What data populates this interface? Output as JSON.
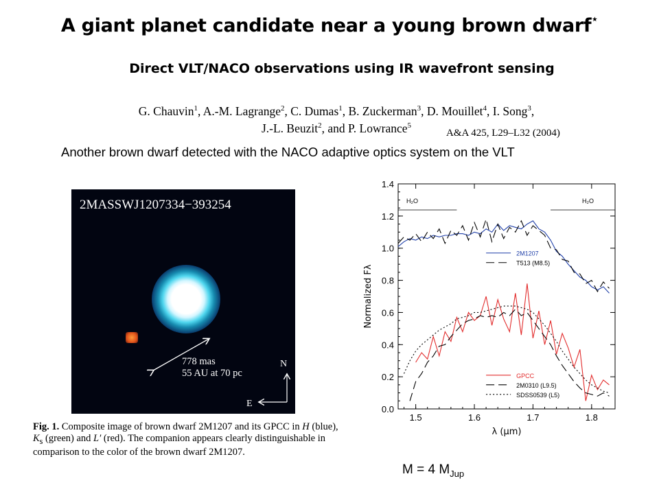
{
  "slide": {
    "title": "A giant planet candidate near a young brown dwarf",
    "title_mark": "⋆",
    "subtitle": "Direct VLT/NACO observations using IR wavefront sensing",
    "authors_line1": [
      {
        "name": "G. Chauvin",
        "sup": "1"
      },
      {
        "name": ", A.-M. Lagrange",
        "sup": "2"
      },
      {
        "name": ", C. Dumas",
        "sup": "1"
      },
      {
        "name": ", B. Zuckerman",
        "sup": "3"
      },
      {
        "name": ", D. Mouillet",
        "sup": "4"
      },
      {
        "name": ", I. Song",
        "sup": "3"
      },
      {
        "name": ",",
        "sup": ""
      }
    ],
    "authors_line2": [
      {
        "name": "J.-L. Beuzit",
        "sup": "2"
      },
      {
        "name": ", and P. Lowrance",
        "sup": "5"
      }
    ],
    "citation": "A&A 425, L29–L32 (2004)",
    "caption": "Another brown dwarf detected with the NACO adaptive optics system on the VLT",
    "mass_prefix": "M = 4 M",
    "mass_sub": "Jup"
  },
  "image_panel": {
    "object_label": "2MASSWJ1207334−393254",
    "scale_line1": "778 mas",
    "scale_line2": "55 AU at 70 pc",
    "north": "N",
    "east": "E"
  },
  "figure_caption": {
    "label": "Fig. 1.",
    "t1": " Composite image of brown dwarf 2M1207 and its GPCC in ",
    "H": "H",
    "t2": " (blue), ",
    "K": "K",
    "Ksub": "s",
    "t3": " (green) and ",
    "L": "L′",
    "t4": " (red). The companion appears clearly distinguishable in comparison to the color of the brown dwarf 2M1207."
  },
  "colors": {
    "blue_series": "#1f3fa8",
    "red_series": "#e22b2b",
    "black_series": "#000000"
  },
  "chart_data": {
    "type": "line",
    "xlabel": "λ (μm)",
    "ylabel": "Normalized Fλ",
    "xlim": [
      1.47,
      1.84
    ],
    "ylim": [
      0.0,
      1.4
    ],
    "xticks": [
      1.5,
      1.6,
      1.7,
      1.8
    ],
    "yticks": [
      0.0,
      0.2,
      0.4,
      0.6,
      0.8,
      1.0,
      1.2,
      1.4
    ],
    "annotations": [
      "H₂O",
      "H₂O"
    ],
    "legends": [
      {
        "entries": [
          {
            "label": "2M1207",
            "series": "2M1207"
          },
          {
            "label": "T513 (M8.5)",
            "series": "T513"
          }
        ]
      },
      {
        "entries": [
          {
            "label": "GPCC",
            "series": "GPCC"
          },
          {
            "label": "2M0310 (L9.5)",
            "series": "2M0310"
          },
          {
            "label": "SDSS0539 (L5)",
            "series": "SDSS0539"
          }
        ]
      }
    ],
    "series": [
      {
        "name": "2M1207",
        "style": "solid",
        "color": "#1f3fa8",
        "x": [
          1.47,
          1.48,
          1.49,
          1.5,
          1.51,
          1.52,
          1.53,
          1.54,
          1.55,
          1.56,
          1.57,
          1.58,
          1.59,
          1.6,
          1.61,
          1.62,
          1.63,
          1.64,
          1.65,
          1.66,
          1.67,
          1.68,
          1.69,
          1.7,
          1.71,
          1.72,
          1.73,
          1.74,
          1.75,
          1.76,
          1.77,
          1.78,
          1.79,
          1.8,
          1.81,
          1.82,
          1.83
        ],
        "y": [
          1.01,
          1.04,
          1.06,
          1.05,
          1.07,
          1.06,
          1.08,
          1.07,
          1.08,
          1.08,
          1.09,
          1.09,
          1.08,
          1.1,
          1.09,
          1.12,
          1.1,
          1.15,
          1.11,
          1.14,
          1.13,
          1.12,
          1.15,
          1.17,
          1.12,
          1.1,
          1.05,
          0.98,
          0.95,
          0.9,
          0.86,
          0.82,
          0.8,
          0.76,
          0.74,
          0.76,
          0.72
        ]
      },
      {
        "name": "T513",
        "style": "dashed",
        "color": "#000000",
        "x": [
          1.47,
          1.48,
          1.49,
          1.5,
          1.51,
          1.52,
          1.53,
          1.54,
          1.55,
          1.56,
          1.57,
          1.58,
          1.59,
          1.6,
          1.61,
          1.62,
          1.63,
          1.64,
          1.65,
          1.66,
          1.67,
          1.68,
          1.69,
          1.7,
          1.71,
          1.72,
          1.73,
          1.74,
          1.75,
          1.76,
          1.77,
          1.78,
          1.79,
          1.8,
          1.81,
          1.82,
          1.83
        ],
        "y": [
          1.03,
          1.07,
          1.05,
          1.09,
          1.04,
          1.1,
          1.06,
          1.12,
          1.03,
          1.11,
          1.08,
          1.14,
          1.05,
          1.16,
          1.07,
          1.18,
          1.04,
          1.15,
          1.06,
          1.13,
          1.1,
          1.17,
          1.08,
          1.14,
          1.11,
          1.08,
          1.0,
          0.99,
          0.93,
          0.92,
          0.85,
          0.84,
          0.78,
          0.8,
          0.73,
          0.79,
          0.75
        ]
      },
      {
        "name": "GPCC",
        "style": "solid",
        "color": "#e22b2b",
        "x": [
          1.5,
          1.51,
          1.52,
          1.53,
          1.54,
          1.55,
          1.56,
          1.57,
          1.58,
          1.59,
          1.6,
          1.61,
          1.62,
          1.63,
          1.64,
          1.65,
          1.66,
          1.67,
          1.68,
          1.69,
          1.7,
          1.71,
          1.72,
          1.73,
          1.74,
          1.75,
          1.76,
          1.77,
          1.78,
          1.79,
          1.8,
          1.81,
          1.82,
          1.83
        ],
        "y": [
          0.29,
          0.35,
          0.31,
          0.45,
          0.33,
          0.48,
          0.42,
          0.57,
          0.48,
          0.6,
          0.55,
          0.58,
          0.7,
          0.52,
          0.68,
          0.56,
          0.48,
          0.72,
          0.46,
          0.78,
          0.44,
          0.61,
          0.4,
          0.55,
          0.34,
          0.47,
          0.38,
          0.26,
          0.37,
          0.05,
          0.21,
          0.12,
          0.18,
          0.15
        ]
      },
      {
        "name": "2M0310",
        "style": "dashed",
        "color": "#000000",
        "x": [
          1.49,
          1.5,
          1.51,
          1.52,
          1.53,
          1.54,
          1.55,
          1.56,
          1.57,
          1.58,
          1.59,
          1.6,
          1.61,
          1.62,
          1.63,
          1.64,
          1.65,
          1.66,
          1.67,
          1.68,
          1.69,
          1.7,
          1.71,
          1.72,
          1.73,
          1.74,
          1.75,
          1.76,
          1.77,
          1.78,
          1.79,
          1.8,
          1.81,
          1.82,
          1.83
        ],
        "y": [
          0.05,
          0.17,
          0.22,
          0.29,
          0.33,
          0.39,
          0.4,
          0.45,
          0.49,
          0.53,
          0.55,
          0.56,
          0.58,
          0.57,
          0.58,
          0.57,
          0.6,
          0.58,
          0.62,
          0.58,
          0.6,
          0.55,
          0.5,
          0.45,
          0.4,
          0.33,
          0.27,
          0.22,
          0.17,
          0.13,
          0.1,
          0.09,
          0.08,
          0.1,
          0.08
        ]
      },
      {
        "name": "SDSS0539",
        "style": "dotted",
        "color": "#000000",
        "x": [
          1.48,
          1.49,
          1.5,
          1.51,
          1.52,
          1.53,
          1.54,
          1.55,
          1.56,
          1.57,
          1.58,
          1.59,
          1.6,
          1.61,
          1.62,
          1.63,
          1.64,
          1.65,
          1.66,
          1.67,
          1.68,
          1.69,
          1.7,
          1.71,
          1.72,
          1.73,
          1.74,
          1.75,
          1.76,
          1.77,
          1.78,
          1.79,
          1.8,
          1.81,
          1.82,
          1.83
        ],
        "y": [
          0.22,
          0.3,
          0.36,
          0.4,
          0.43,
          0.46,
          0.49,
          0.51,
          0.53,
          0.56,
          0.57,
          0.58,
          0.6,
          0.6,
          0.61,
          0.62,
          0.63,
          0.64,
          0.64,
          0.64,
          0.63,
          0.62,
          0.6,
          0.56,
          0.52,
          0.47,
          0.42,
          0.36,
          0.31,
          0.26,
          0.22,
          0.18,
          0.15,
          0.13,
          0.11,
          0.1
        ]
      }
    ]
  }
}
